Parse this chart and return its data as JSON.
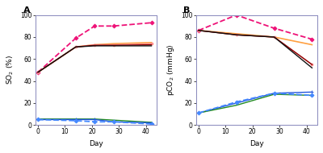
{
  "A": {
    "x": [
      0,
      14,
      21,
      28,
      42
    ],
    "series": [
      {
        "label": "pink_dashed",
        "color": "#EE1177",
        "linestyle": "--",
        "marker": "D",
        "markersize": 2.5,
        "linewidth": 1.3,
        "y": [
          48,
          79,
          90,
          90,
          93
        ]
      },
      {
        "label": "orange",
        "color": "#FFA040",
        "linestyle": "-",
        "marker": null,
        "markersize": 2,
        "linewidth": 1.2,
        "y": [
          48,
          71,
          73,
          74,
          75
        ]
      },
      {
        "label": "pink_solid",
        "color": "#FF9090",
        "linestyle": "-",
        "marker": "o",
        "markersize": 2,
        "linewidth": 1.0,
        "y": [
          48,
          71,
          73,
          73,
          74
        ]
      },
      {
        "label": "darkred",
        "color": "#8B0000",
        "linestyle": "-",
        "marker": null,
        "markersize": 2,
        "linewidth": 1.0,
        "y": [
          48,
          71,
          72.5,
          72.5,
          73
        ]
      },
      {
        "label": "black",
        "color": "#111111",
        "linestyle": "-",
        "marker": null,
        "markersize": 2,
        "linewidth": 1.0,
        "y": [
          48,
          71,
          72,
          72,
          72
        ]
      },
      {
        "label": "green",
        "color": "#228B22",
        "linestyle": "-",
        "marker": null,
        "markersize": 2,
        "linewidth": 1.0,
        "y": [
          5.5,
          5.5,
          5.5,
          4.5,
          2.5
        ]
      },
      {
        "label": "blue_solid",
        "color": "#2255DD",
        "linestyle": "-",
        "marker": "+",
        "markersize": 3,
        "linewidth": 1.0,
        "y": [
          5,
          5,
          5,
          3,
          2
        ]
      },
      {
        "label": "blue_dashed",
        "color": "#4488FF",
        "linestyle": "--",
        "marker": "D",
        "markersize": 2.5,
        "linewidth": 1.3,
        "y": [
          5,
          4,
          3,
          3,
          1
        ]
      }
    ],
    "ylabel": "SO$_2$ (%)",
    "ylim": [
      0,
      100
    ],
    "yticks": [
      0,
      20,
      40,
      60,
      80,
      100
    ],
    "xticks": [
      0,
      10,
      20,
      30,
      40
    ],
    "xlim": [
      -1,
      44
    ],
    "xlabel": "Day",
    "panel_label": "A"
  },
  "B": {
    "x": [
      0,
      14,
      28,
      42
    ],
    "series": [
      {
        "label": "pink_dashed",
        "color": "#EE1177",
        "linestyle": "--",
        "marker": "D",
        "markersize": 2.5,
        "linewidth": 1.3,
        "y": [
          86,
          100,
          88,
          78
        ]
      },
      {
        "label": "orange",
        "color": "#FFA040",
        "linestyle": "-",
        "marker": null,
        "markersize": 2,
        "linewidth": 1.2,
        "y": [
          86,
          83,
          80,
          73
        ]
      },
      {
        "label": "pink_solid",
        "color": "#FF9090",
        "linestyle": "-",
        "marker": "o",
        "markersize": 2,
        "linewidth": 1.0,
        "y": [
          86,
          82,
          80,
          55
        ]
      },
      {
        "label": "darkred",
        "color": "#8B0000",
        "linestyle": "-",
        "marker": null,
        "markersize": 2,
        "linewidth": 1.0,
        "y": [
          86,
          82,
          80,
          55
        ]
      },
      {
        "label": "black",
        "color": "#111111",
        "linestyle": "-",
        "marker": null,
        "markersize": 2,
        "linewidth": 1.0,
        "y": [
          86,
          82,
          80,
          52
        ]
      },
      {
        "label": "blue_solid",
        "color": "#2255DD",
        "linestyle": "-",
        "marker": "+",
        "markersize": 3,
        "linewidth": 1.0,
        "y": [
          11,
          20,
          29,
          30
        ]
      },
      {
        "label": "green",
        "color": "#228B22",
        "linestyle": "-",
        "marker": null,
        "markersize": 2,
        "linewidth": 1.0,
        "y": [
          11,
          18,
          28,
          27
        ]
      },
      {
        "label": "blue_dashed",
        "color": "#4488FF",
        "linestyle": "--",
        "marker": "D",
        "markersize": 2.5,
        "linewidth": 1.3,
        "y": [
          11,
          21,
          29,
          27
        ]
      }
    ],
    "ylabel": "pCO$_2$ (mmHg)",
    "ylim": [
      0,
      100
    ],
    "yticks": [
      0,
      20,
      40,
      60,
      80,
      100
    ],
    "xticks": [
      0,
      10,
      20,
      30,
      40
    ],
    "xlim": [
      -1,
      44
    ],
    "xlabel": "Day",
    "panel_label": "B"
  },
  "background_color": "#ffffff",
  "axes_bg": "#ffffff",
  "spine_color": "#8888bb"
}
